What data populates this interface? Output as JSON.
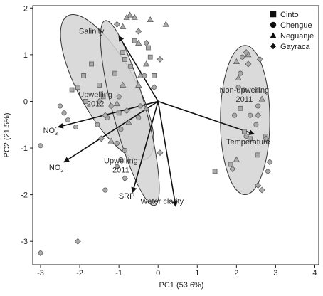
{
  "chart_data": {
    "type": "scatter",
    "subtype": "PCA biplot",
    "xlabel": "PC1 (53.6%)",
    "ylabel": "PC2 (21.5%)",
    "xlim": [
      -3.2,
      4.1
    ],
    "ylim": [
      -3.5,
      2.05
    ],
    "xticks": [
      -3,
      -2,
      -1,
      0,
      1,
      2,
      3,
      4
    ],
    "yticks": [
      -3,
      -2,
      -1,
      0,
      1,
      2
    ],
    "grid": false,
    "legend_position": "top-right",
    "legend": [
      {
        "label": "Cinto",
        "marker": "square"
      },
      {
        "label": "Chengue",
        "marker": "circle"
      },
      {
        "label": "Neguanje",
        "marker": "triangle"
      },
      {
        "label": "Gayraca",
        "marker": "diamond"
      }
    ],
    "groups": [
      {
        "label": "Upwelling\n2012",
        "label_at": [
          -1.6,
          0.0
        ],
        "ellipse": {
          "cx": -1.3,
          "cy": 0.3,
          "rx": 0.72,
          "ry": 1.75,
          "angle_deg": -29
        }
      },
      {
        "label": "Upwelling\n2011",
        "label_at": [
          -0.95,
          -1.42
        ],
        "ellipse": {
          "cx": -0.72,
          "cy": -0.25,
          "rx": 0.42,
          "ry": 2.05,
          "angle_deg": -15
        }
      },
      {
        "label": "Non-upwelling\n2011",
        "label_at": [
          2.2,
          0.1
        ],
        "ellipse": {
          "cx": 2.22,
          "cy": -0.4,
          "rx": 0.63,
          "ry": 1.6,
          "angle_deg": 0
        }
      }
    ],
    "vectors": [
      {
        "label": "Salinity",
        "x": -1.0,
        "y": 1.4,
        "label_at": [
          -1.7,
          1.45
        ]
      },
      {
        "label": "Temperature",
        "x": 2.45,
        "y": -0.7,
        "label_at": [
          2.3,
          -0.92
        ]
      },
      {
        "label": "NO",
        "sub": "3",
        "sup": "-",
        "x": -2.55,
        "y": -0.55,
        "label_at": [
          -2.75,
          -0.68
        ]
      },
      {
        "label": "NO",
        "sub": "2",
        "sup": "",
        "x": -2.4,
        "y": -1.3,
        "label_at": [
          -2.6,
          -1.47
        ]
      },
      {
        "label": "SRP",
        "x": -0.65,
        "y": -1.95,
        "label_at": [
          -0.8,
          -2.08
        ]
      },
      {
        "label": "Water clarity",
        "x": 0.45,
        "y": -2.25,
        "label_at": [
          0.1,
          -2.2
        ]
      }
    ],
    "series": [
      {
        "name": "Cinto",
        "marker": "square",
        "points": [
          [
            -2.2,
            0.25
          ],
          [
            -1.7,
            0.8
          ],
          [
            -1.9,
            0.55
          ],
          [
            -1.5,
            0.35
          ],
          [
            -1.4,
            0.1
          ],
          [
            -1.85,
            0.0
          ],
          [
            -1.1,
            0.6
          ],
          [
            -0.9,
            1.05
          ],
          [
            -0.85,
            0.9
          ],
          [
            -0.7,
            0.75
          ],
          [
            -0.6,
            1.3
          ],
          [
            -0.25,
            1.15
          ],
          [
            -0.2,
            0.95
          ],
          [
            -0.1,
            0.55
          ],
          [
            -1.0,
            -0.25
          ],
          [
            -2.05,
            0.3
          ],
          [
            1.45,
            -1.5
          ],
          [
            1.85,
            -1.35
          ],
          [
            2.1,
            -0.15
          ],
          [
            2.2,
            -0.65
          ],
          [
            2.75,
            -0.75
          ],
          [
            2.55,
            -1.15
          ],
          [
            2.35,
            -0.8
          ]
        ]
      },
      {
        "name": "Chengue",
        "marker": "circle",
        "points": [
          [
            -3.0,
            -0.95
          ],
          [
            -2.5,
            -0.1
          ],
          [
            -2.4,
            -0.25
          ],
          [
            -2.3,
            -0.4
          ],
          [
            -1.55,
            -0.5
          ],
          [
            -2.1,
            -0.55
          ],
          [
            -1.2,
            -0.1
          ],
          [
            -1.0,
            0.1
          ],
          [
            -1.3,
            -0.35
          ],
          [
            -0.5,
            -0.35
          ],
          [
            -0.95,
            -0.6
          ],
          [
            -1.05,
            -0.9
          ],
          [
            -0.85,
            -1.05
          ],
          [
            -0.95,
            -1.25
          ],
          [
            -0.35,
            0.55
          ],
          [
            -0.45,
            -0.1
          ],
          [
            -1.35,
            -1.9
          ],
          [
            -1.05,
            -1.4
          ],
          [
            2.1,
            0.6
          ],
          [
            2.25,
            -0.75
          ],
          [
            2.35,
            -0.3
          ],
          [
            2.55,
            -0.1
          ],
          [
            1.95,
            -0.3
          ],
          [
            2.05,
            0.3
          ],
          [
            2.15,
            0.95
          ],
          [
            2.2,
            0.25
          ],
          [
            2.5,
            -0.5
          ]
        ]
      },
      {
        "name": "Neguanje",
        "marker": "triangle",
        "points": [
          [
            -0.8,
            1.8
          ],
          [
            -0.72,
            1.85
          ],
          [
            -0.6,
            1.8
          ],
          [
            -0.2,
            1.75
          ],
          [
            0.2,
            1.65
          ],
          [
            -0.9,
            1.6
          ],
          [
            -0.5,
            1.25
          ],
          [
            -0.3,
            0.8
          ],
          [
            -0.45,
            0.55
          ],
          [
            -0.9,
            0.35
          ],
          [
            -0.5,
            0.35
          ],
          [
            -1.05,
            -0.05
          ],
          [
            -0.3,
            -0.15
          ],
          [
            -0.75,
            -0.45
          ],
          [
            -1.2,
            -0.85
          ],
          [
            2.3,
            1.0
          ],
          [
            2.05,
            0.5
          ],
          [
            2.0,
            0.85
          ],
          [
            2.55,
            0.25
          ],
          [
            2.65,
            0.05
          ],
          [
            2.0,
            -1.25
          ]
        ]
      },
      {
        "name": "Gayraca",
        "marker": "diamond",
        "points": [
          [
            -3.0,
            -3.25
          ],
          [
            -2.05,
            -3.0
          ],
          [
            -1.05,
            1.65
          ],
          [
            -0.5,
            1.5
          ],
          [
            -0.3,
            1.25
          ],
          [
            0.05,
            0.9
          ],
          [
            -0.1,
            0.3
          ],
          [
            -1.5,
            0.0
          ],
          [
            -0.8,
            -0.2
          ],
          [
            -1.45,
            -0.8
          ],
          [
            -0.85,
            -1.65
          ],
          [
            0.05,
            -1.1
          ],
          [
            -1.35,
            -0.3
          ],
          [
            2.25,
            1.05
          ],
          [
            2.3,
            0.8
          ],
          [
            2.6,
            0.9
          ],
          [
            2.55,
            -0.3
          ],
          [
            2.75,
            -0.8
          ],
          [
            2.85,
            -1.3
          ],
          [
            2.8,
            -1.5
          ],
          [
            2.65,
            -1.9
          ],
          [
            2.55,
            -1.8
          ],
          [
            1.9,
            -1.45
          ]
        ]
      }
    ]
  }
}
